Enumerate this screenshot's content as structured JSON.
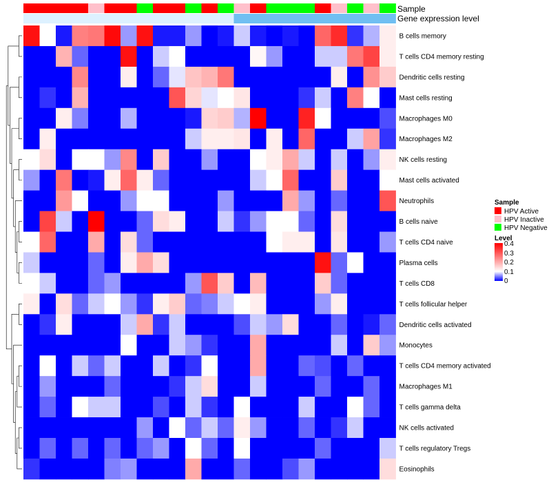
{
  "chart_data": {
    "type": "heatmap",
    "annotation_tracks": [
      {
        "name": "Sample",
        "label": "Sample",
        "values": [
          "HPV Active",
          "HPV Active",
          "HPV Active",
          "HPV Active",
          "HPV Inactive",
          "HPV Active",
          "HPV Active",
          "HPV Negative",
          "HPV Active",
          "HPV Active",
          "HPV Negative",
          "HPV Active",
          "HPV Negative",
          "HPV Inactive",
          "HPV Active",
          "HPV Negative",
          "HPV Negative",
          "HPV Negative",
          "HPV Active",
          "HPV Inactive",
          "HPV Negative",
          "HPV Inactive",
          "HPV Negative"
        ]
      },
      {
        "name": "Gene expression level",
        "label": "Gene expression level",
        "values": [
          "low",
          "low",
          "low",
          "low",
          "low",
          "low",
          "low",
          "low",
          "low",
          "low",
          "low",
          "low",
          "low",
          "high",
          "high",
          "high",
          "high",
          "high",
          "high",
          "high",
          "high",
          "high",
          "high"
        ]
      }
    ],
    "annotation_colors": {
      "Sample": {
        "HPV Active": "#FF0000",
        "HPV Inactive": "#FFC0CB",
        "HPV Negative": "#00FF00"
      },
      "Gene expression level": {
        "low": "#DDF1FF",
        "high": "#70BFF2"
      }
    },
    "rows": [
      "B cells memory",
      "T cells CD4 memory resting",
      "Dendritic cells resting",
      "Mast cells resting",
      "Macrophages M0",
      "Macrophages M2",
      "NK cells resting",
      "Mast cells activated",
      "Neutrophils",
      "B cells naive",
      "T cells CD4 naive",
      "Plasma cells",
      "T cells CD8",
      "T cells follicular helper",
      "Dendritic cells activated",
      "Monocytes",
      "T cells CD4 memory activated",
      "Macrophages M1",
      "T cells gamma delta",
      "NK cells activated",
      "T cells regulatory  Tregs",
      "Eosinophils"
    ],
    "values": [
      [
        0.38,
        0.1,
        0.01,
        0.25,
        0.26,
        0.39,
        0.06,
        0.38,
        0.01,
        0.01,
        0.06,
        0.0,
        0.01,
        0.08,
        0.01,
        0.0,
        0.01,
        0.0,
        0.28,
        0.35,
        0.02,
        0.07,
        0.12
      ],
      [
        0.0,
        0.0,
        0.19,
        0.04,
        0.0,
        0.0,
        0.38,
        0.0,
        0.08,
        0.1,
        0.0,
        0.0,
        0.0,
        0.0,
        0.11,
        0.06,
        0.0,
        0.0,
        0.08,
        0.08,
        0.26,
        0.32,
        0.12
      ],
      [
        0.0,
        0.0,
        0.0,
        0.24,
        0.0,
        0.0,
        0.12,
        0.0,
        0.04,
        0.09,
        0.17,
        0.19,
        0.26,
        0.0,
        0.0,
        0.0,
        0.0,
        0.0,
        0.0,
        0.12,
        0.0,
        0.23,
        0.16
      ],
      [
        0.0,
        0.02,
        0.0,
        0.19,
        0.0,
        0.0,
        0.0,
        0.0,
        0.0,
        0.3,
        0.15,
        0.09,
        0.1,
        0.13,
        0.0,
        0.0,
        0.0,
        0.02,
        0.08,
        0.0,
        0.25,
        0.1,
        0.0
      ],
      [
        0.0,
        0.0,
        0.12,
        0.05,
        0.0,
        0.0,
        0.07,
        0.0,
        0.0,
        0.0,
        0.01,
        0.15,
        0.16,
        0.07,
        0.4,
        0.0,
        0.0,
        0.36,
        0.1,
        0.0,
        0.0,
        0.0,
        0.03
      ],
      [
        0.0,
        0.12,
        0.0,
        0.0,
        0.0,
        0.0,
        0.0,
        0.0,
        0.0,
        0.0,
        0.08,
        0.12,
        0.12,
        0.13,
        0.0,
        0.12,
        0.0,
        0.28,
        0.0,
        0.0,
        0.08,
        0.21,
        0.02
      ],
      [
        0.1,
        0.14,
        0.0,
        0.1,
        0.1,
        0.06,
        0.24,
        0.0,
        0.16,
        0.0,
        0.0,
        0.06,
        0.0,
        0.0,
        0.1,
        0.12,
        0.2,
        0.08,
        0.0,
        0.08,
        0.0,
        0.06,
        0.12
      ],
      [
        0.06,
        0.0,
        0.26,
        0.0,
        0.01,
        0.12,
        0.28,
        0.12,
        0.04,
        0.0,
        0.0,
        0.0,
        0.0,
        0.0,
        0.08,
        0.1,
        0.28,
        0.0,
        0.0,
        0.16,
        0.0,
        0.0,
        0.1
      ],
      [
        0.0,
        0.0,
        0.22,
        0.1,
        0.0,
        0.0,
        0.06,
        0.1,
        0.1,
        0.0,
        0.0,
        0.0,
        0.06,
        0.0,
        0.0,
        0.0,
        0.2,
        0.06,
        0.0,
        0.04,
        0.0,
        0.0,
        0.3
      ],
      [
        0.0,
        0.32,
        0.08,
        0.0,
        0.4,
        0.0,
        0.0,
        0.04,
        0.14,
        0.12,
        0.0,
        0.0,
        0.08,
        0.02,
        0.06,
        0.1,
        0.1,
        0.04,
        0.0,
        0.14,
        0.0,
        0.0,
        0.0
      ],
      [
        0.1,
        0.28,
        0.0,
        0.0,
        0.2,
        0.0,
        0.14,
        0.04,
        0.0,
        0.0,
        0.0,
        0.0,
        0.0,
        0.0,
        0.0,
        0.1,
        0.12,
        0.12,
        0.0,
        0.13,
        0.0,
        0.0,
        0.06
      ],
      [
        0.08,
        0.0,
        0.0,
        0.0,
        0.04,
        0.0,
        0.12,
        0.2,
        0.14,
        0.0,
        0.0,
        0.0,
        0.0,
        0.0,
        0.0,
        0.0,
        0.0,
        0.0,
        0.38,
        0.04,
        0.1,
        0.0,
        0.0
      ],
      [
        0.1,
        0.08,
        0.0,
        0.0,
        0.04,
        0.06,
        0.0,
        0.0,
        0.0,
        0.0,
        0.06,
        0.3,
        0.16,
        0.0,
        0.18,
        0.0,
        0.0,
        0.0,
        0.16,
        0.04,
        0.0,
        0.0,
        0.0
      ],
      [
        0.12,
        0.0,
        0.14,
        0.04,
        0.08,
        0.1,
        0.06,
        0.02,
        0.12,
        0.16,
        0.04,
        0.05,
        0.08,
        0.1,
        0.12,
        0.0,
        0.0,
        0.0,
        0.06,
        0.12,
        0.0,
        0.0,
        0.0
      ],
      [
        0.0,
        0.02,
        0.12,
        0.0,
        0.0,
        0.0,
        0.08,
        0.2,
        0.02,
        0.08,
        0.0,
        0.0,
        0.0,
        0.03,
        0.08,
        0.06,
        0.14,
        0.0,
        0.0,
        0.04,
        0.0,
        0.01,
        0.04
      ],
      [
        0.0,
        0.0,
        0.0,
        0.0,
        0.0,
        0.0,
        0.1,
        0.0,
        0.0,
        0.08,
        0.06,
        0.02,
        0.0,
        0.0,
        0.2,
        0.0,
        0.0,
        0.0,
        0.0,
        0.08,
        0.0,
        0.16,
        0.06
      ],
      [
        0.0,
        0.1,
        0.0,
        0.08,
        0.04,
        0.08,
        0.0,
        0.0,
        0.08,
        0.0,
        0.02,
        0.1,
        0.0,
        0.0,
        0.2,
        0.0,
        0.0,
        0.04,
        0.03,
        0.0,
        0.04,
        0.0,
        0.0
      ],
      [
        0.0,
        0.06,
        0.0,
        0.0,
        0.0,
        0.04,
        0.0,
        0.0,
        0.0,
        0.02,
        0.08,
        0.14,
        0.0,
        0.0,
        0.08,
        0.0,
        0.0,
        0.0,
        0.04,
        0.0,
        0.0,
        0.04,
        0.0
      ],
      [
        0.0,
        0.04,
        0.0,
        0.1,
        0.08,
        0.08,
        0.0,
        0.0,
        0.03,
        0.0,
        0.08,
        0.02,
        0.0,
        0.1,
        0.0,
        0.0,
        0.0,
        0.08,
        0.0,
        0.0,
        0.1,
        0.04,
        0.0
      ],
      [
        0.0,
        0.0,
        0.0,
        0.0,
        0.0,
        0.0,
        0.0,
        0.06,
        0.0,
        0.1,
        0.04,
        0.08,
        0.04,
        0.12,
        0.06,
        0.0,
        0.0,
        0.04,
        0.0,
        0.02,
        0.08,
        0.0,
        0.0
      ],
      [
        0.0,
        0.04,
        0.0,
        0.04,
        0.0,
        0.04,
        0.0,
        0.04,
        0.06,
        0.0,
        0.1,
        0.04,
        0.0,
        0.1,
        0.0,
        0.0,
        0.0,
        0.0,
        0.04,
        0.0,
        0.0,
        0.0,
        0.08
      ],
      [
        0.02,
        0.0,
        0.0,
        0.0,
        0.0,
        0.05,
        0.06,
        0.0,
        0.0,
        0.0,
        0.2,
        0.0,
        0.0,
        0.04,
        0.0,
        0.0,
        0.03,
        0.06,
        0.0,
        0.0,
        0.0,
        0.0,
        0.14
      ]
    ],
    "color_scale": {
      "min": 0,
      "mid": 0.1,
      "max": 0.4,
      "low_color": "#0000FF",
      "mid_color": "#FFFFFF",
      "high_color": "#FF0000"
    },
    "legends": {
      "sample": {
        "title": "Sample",
        "entries": [
          {
            "label": "HPV Active",
            "color": "#FF0000"
          },
          {
            "label": "HPV Inactive",
            "color": "#FFC0CB"
          },
          {
            "label": "HPV Negative",
            "color": "#00FF00"
          }
        ]
      },
      "level": {
        "title": "Level",
        "ticks": [
          "0.4",
          "0.3",
          "0.2",
          "0.1",
          "0"
        ]
      }
    },
    "row_dendrogram": true
  }
}
